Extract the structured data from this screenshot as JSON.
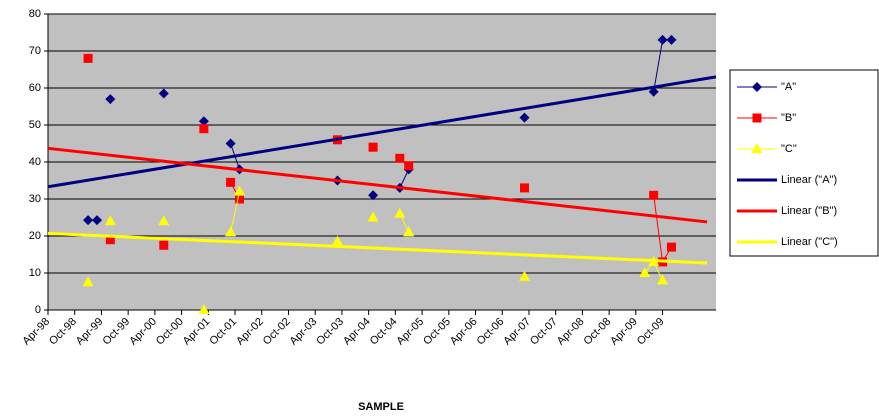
{
  "chart_data": {
    "type": "line",
    "x_axis_label": "SAMPLE",
    "xlim": [
      "1998-04",
      "2010-10"
    ],
    "xticks": [
      {
        "value": "1998-04",
        "label": "Apr-98"
      },
      {
        "value": "1998-10",
        "label": "Oct-98"
      },
      {
        "value": "1999-04",
        "label": "Apr-99"
      },
      {
        "value": "1999-10",
        "label": "Oct-99"
      },
      {
        "value": "2000-04",
        "label": "Apr-00"
      },
      {
        "value": "2000-10",
        "label": "Oct-00"
      },
      {
        "value": "2001-04",
        "label": "Apr-01"
      },
      {
        "value": "2001-10",
        "label": "Oct-01"
      },
      {
        "value": "2002-04",
        "label": "Apr-02"
      },
      {
        "value": "2002-10",
        "label": "Oct-02"
      },
      {
        "value": "2003-04",
        "label": "Apr-03"
      },
      {
        "value": "2003-10",
        "label": "Oct-03"
      },
      {
        "value": "2004-04",
        "label": "Apr-04"
      },
      {
        "value": "2004-10",
        "label": "Oct-04"
      },
      {
        "value": "2005-04",
        "label": "Apr-05"
      },
      {
        "value": "2005-10",
        "label": "Oct-05"
      },
      {
        "value": "2006-04",
        "label": "Apr-06"
      },
      {
        "value": "2006-10",
        "label": "Oct-06"
      },
      {
        "value": "2007-04",
        "label": "Apr-07"
      },
      {
        "value": "2007-10",
        "label": "Oct-07"
      },
      {
        "value": "2008-04",
        "label": "Apr-08"
      },
      {
        "value": "2008-10",
        "label": "Oct-08"
      },
      {
        "value": "2009-04",
        "label": "Apr-09"
      },
      {
        "value": "2009-10",
        "label": "Oct-09"
      }
    ],
    "ylim": [
      0,
      80
    ],
    "yticks": [
      0,
      10,
      20,
      30,
      40,
      50,
      60,
      70,
      80
    ],
    "grid": true,
    "legend": "right",
    "series": [
      {
        "name": "\"A\"",
        "color": "#000080",
        "marker": "diamond",
        "x": [
          "1999-01",
          "1999-03",
          null,
          "1999-06",
          null,
          "2000-06",
          null,
          "2001-03",
          null,
          "2001-09",
          "2001-11",
          null,
          "2003-09",
          null,
          "2004-05",
          null,
          "2004-11",
          "2005-01",
          null,
          "2007-03",
          null,
          "2009-08",
          "2009-10",
          "2009-12"
        ],
        "values": [
          24.3,
          24.3,
          null,
          57,
          null,
          58.5,
          null,
          51,
          null,
          45,
          38,
          null,
          35,
          null,
          31,
          null,
          33,
          38,
          null,
          52,
          null,
          59,
          73,
          73
        ]
      },
      {
        "name": "\"B\"",
        "color": "#ff0000",
        "marker": "square",
        "x": [
          "1999-01",
          null,
          "1999-06",
          null,
          "2000-06",
          null,
          "2001-03",
          null,
          "2001-09",
          "2001-11",
          null,
          "2003-09",
          null,
          "2004-05",
          null,
          "2004-11",
          "2005-01",
          null,
          "2007-03",
          null,
          "2009-08",
          "2009-10",
          "2009-12"
        ],
        "values": [
          68,
          null,
          19,
          null,
          17.5,
          null,
          49,
          null,
          34.5,
          30,
          null,
          46,
          null,
          44,
          null,
          41,
          39,
          null,
          33,
          null,
          31,
          13,
          17
        ]
      },
      {
        "name": "\"C\"",
        "color": "#ffff00",
        "marker": "triangle",
        "x": [
          "1999-01",
          null,
          "1999-06",
          null,
          "2000-06",
          null,
          "2001-03",
          null,
          "2001-09",
          "2001-11",
          null,
          "2003-09",
          null,
          "2004-05",
          null,
          "2004-11",
          "2005-01",
          null,
          "2007-03",
          null,
          "2009-06",
          "2009-08",
          "2009-10"
        ],
        "values": [
          7.5,
          null,
          24,
          null,
          24,
          null,
          0,
          null,
          21,
          32,
          null,
          18.5,
          null,
          25,
          null,
          26,
          21,
          null,
          9,
          null,
          10,
          13,
          8
        ]
      },
      {
        "name": "Linear (\"A\")",
        "color": "#000080",
        "marker": "none",
        "x": [
          "1998-04",
          "2010-10"
        ],
        "values": [
          33.3,
          63
        ]
      },
      {
        "name": "Linear (\"B\")",
        "color": "#ff0000",
        "marker": "none",
        "x": [
          "1998-04",
          "2010-08"
        ],
        "values": [
          43.7,
          23.8
        ]
      },
      {
        "name": "Linear (\"C\")",
        "color": "#ffff00",
        "marker": "none",
        "x": [
          "1998-04",
          "2010-08"
        ],
        "values": [
          20.7,
          12.7
        ]
      }
    ]
  }
}
